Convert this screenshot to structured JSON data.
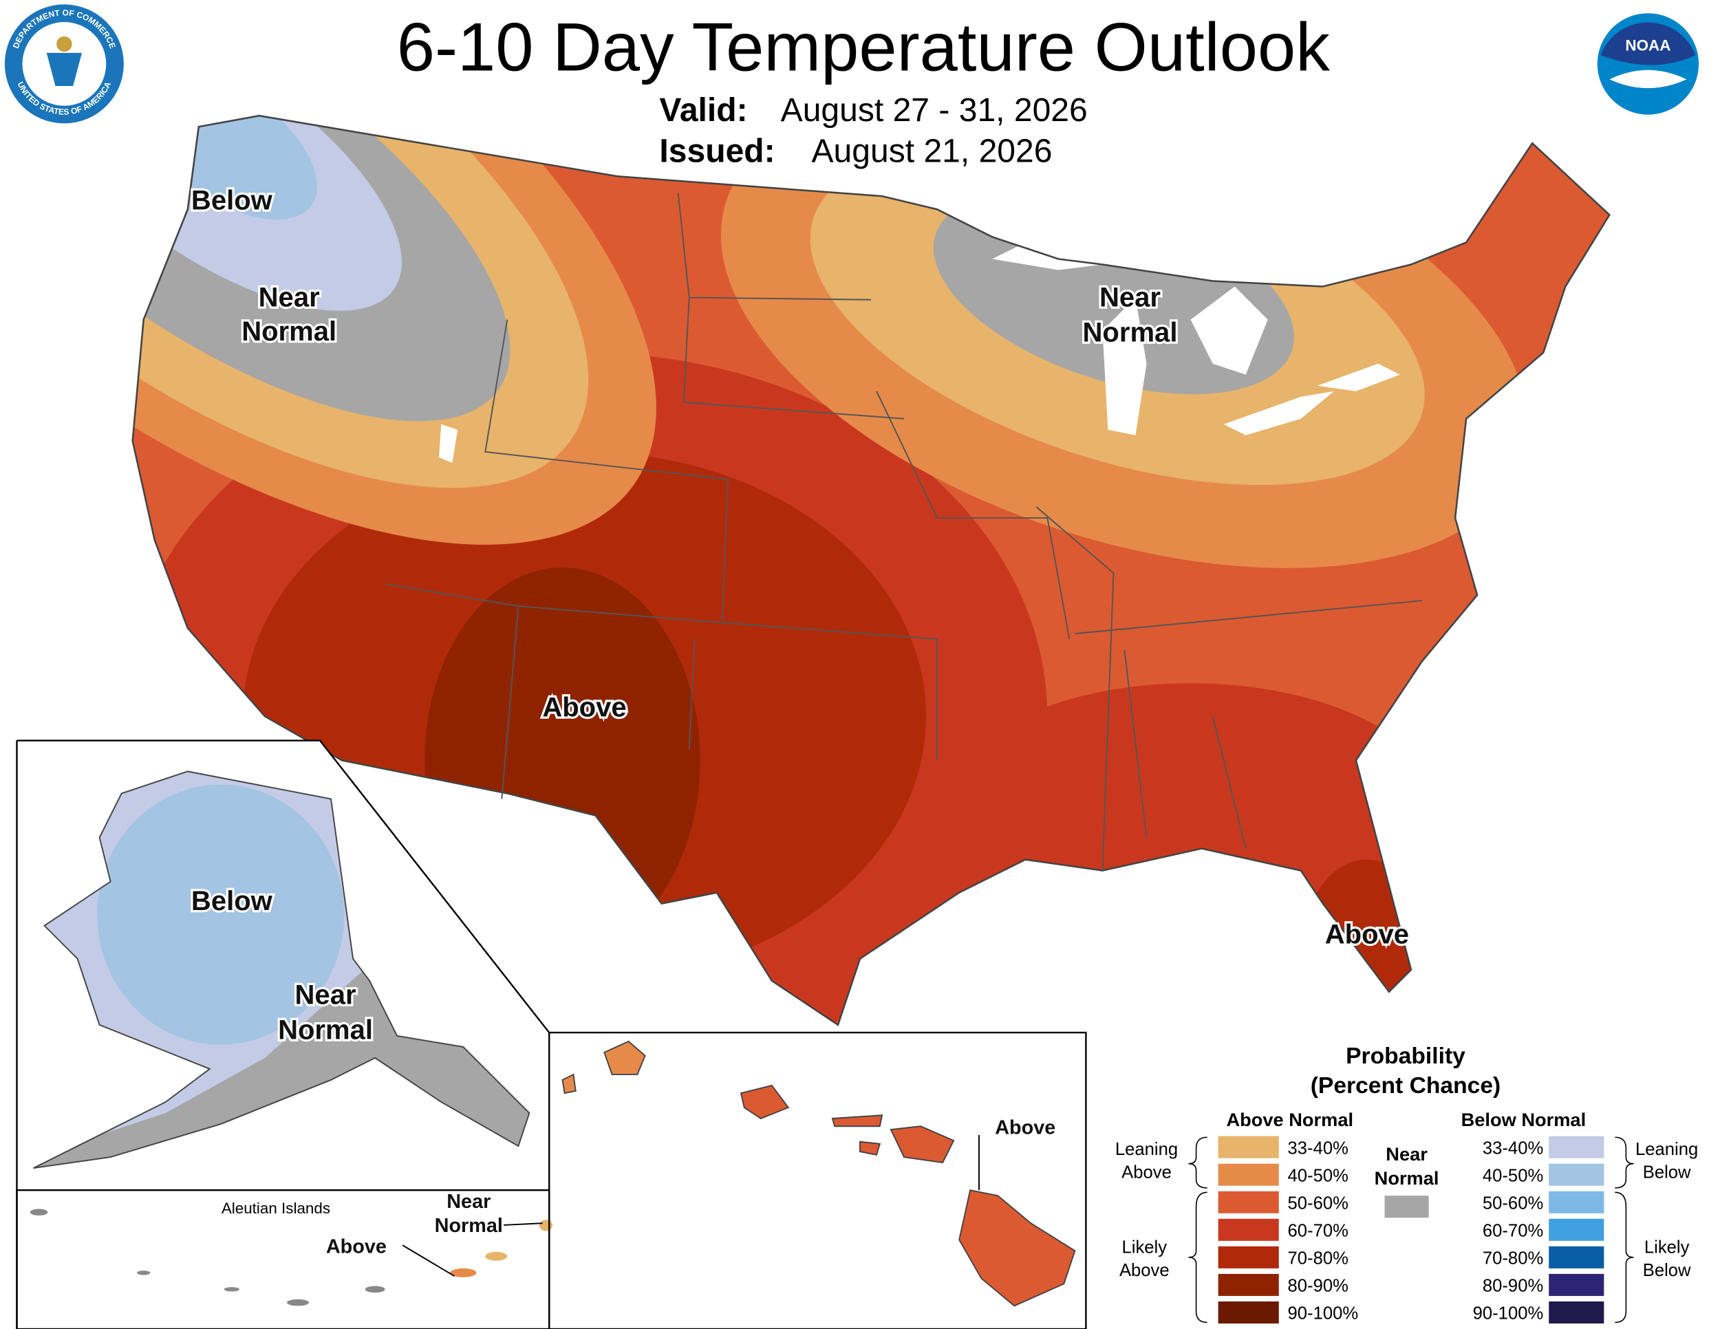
{
  "header": {
    "title": "6-10 Day Temperature Outlook",
    "valid_label": "Valid:",
    "valid_date": "August 27 - 31, 2026",
    "issued_label": "Issued:",
    "issued_date": "August 21, 2026",
    "doc_seal_top": "DEPARTMENT OF COMMERCE",
    "doc_seal_bottom": "UNITED STATES OF AMERICA",
    "noaa_logo": "NOAA"
  },
  "map_labels": {
    "conus_below": "Below",
    "conus_nw_near_normal": [
      "Near",
      "Normal"
    ],
    "conus_gl_near_normal": [
      "Near",
      "Normal"
    ],
    "conus_above": "Above",
    "florida_above": "Above",
    "alaska_below": "Below",
    "alaska_near_normal": [
      "Near",
      "Normal"
    ],
    "hawaii_above": "Above",
    "aleutian_title": "Aleutian Islands",
    "aleutian_near_normal": [
      "Near",
      "Normal"
    ],
    "aleutian_above": "Above"
  },
  "legend": {
    "title": "Probability",
    "subtitle": "(Percent Chance)",
    "above_normal": {
      "heading": "Above Normal",
      "items": [
        {
          "label": "33-40%",
          "color": "#E8B36A"
        },
        {
          "label": "40-50%",
          "color": "#E68A4A"
        },
        {
          "label": "50-60%",
          "color": "#DC5A32"
        },
        {
          "label": "60-70%",
          "color": "#C9381E"
        },
        {
          "label": "70-80%",
          "color": "#B02A0A"
        },
        {
          "label": "80-90%",
          "color": "#8F2300"
        },
        {
          "label": "90-100%",
          "color": "#6B1A00"
        }
      ]
    },
    "near_normal": {
      "heading": [
        "Near",
        "Normal"
      ],
      "color": "#A6A6A6"
    },
    "below_normal": {
      "heading": "Below Normal",
      "items": [
        {
          "label": "33-40%",
          "color": "#C3CBE6"
        },
        {
          "label": "40-50%",
          "color": "#A3C4E3"
        },
        {
          "label": "50-60%",
          "color": "#7EB8E6"
        },
        {
          "label": "60-70%",
          "color": "#41A0DF"
        },
        {
          "label": "70-80%",
          "color": "#0A5EA5"
        },
        {
          "label": "80-90%",
          "color": "#2E2475"
        },
        {
          "label": "90-100%",
          "color": "#1E1A4E"
        }
      ]
    },
    "leaning_above": [
      "Leaning",
      "Above"
    ],
    "likely_above": [
      "Likely",
      "Above"
    ],
    "leaning_below": [
      "Leaning",
      "Below"
    ],
    "likely_below": [
      "Likely",
      "Below"
    ]
  }
}
